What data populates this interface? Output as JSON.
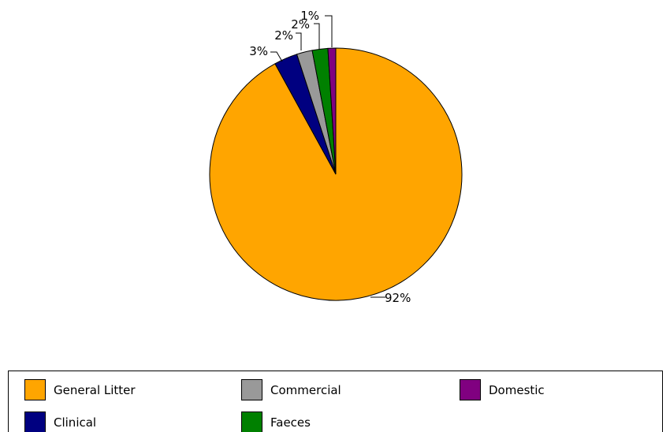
{
  "chart_data": {
    "type": "pie",
    "title": "",
    "start_angle_deg": 0,
    "direction": "clockwise",
    "slices": [
      {
        "label": "General Litter",
        "value": 92,
        "value_label": "92%",
        "color": "#FFA500"
      },
      {
        "label": "Clinical",
        "value": 3,
        "value_label": "3%",
        "color": "#000080"
      },
      {
        "label": "Commercial",
        "value": 2,
        "value_label": "2%",
        "color": "#999999"
      },
      {
        "label": "Faeces",
        "value": 2,
        "value_label": "2%",
        "color": "#008000"
      },
      {
        "label": "Domestic",
        "value": 1,
        "value_label": "1%",
        "color": "#800080"
      }
    ],
    "legend": {
      "placement": "bottom",
      "entries": [
        "General Litter",
        "Commercial",
        "Domestic",
        "Clinical",
        "Faeces"
      ]
    }
  }
}
